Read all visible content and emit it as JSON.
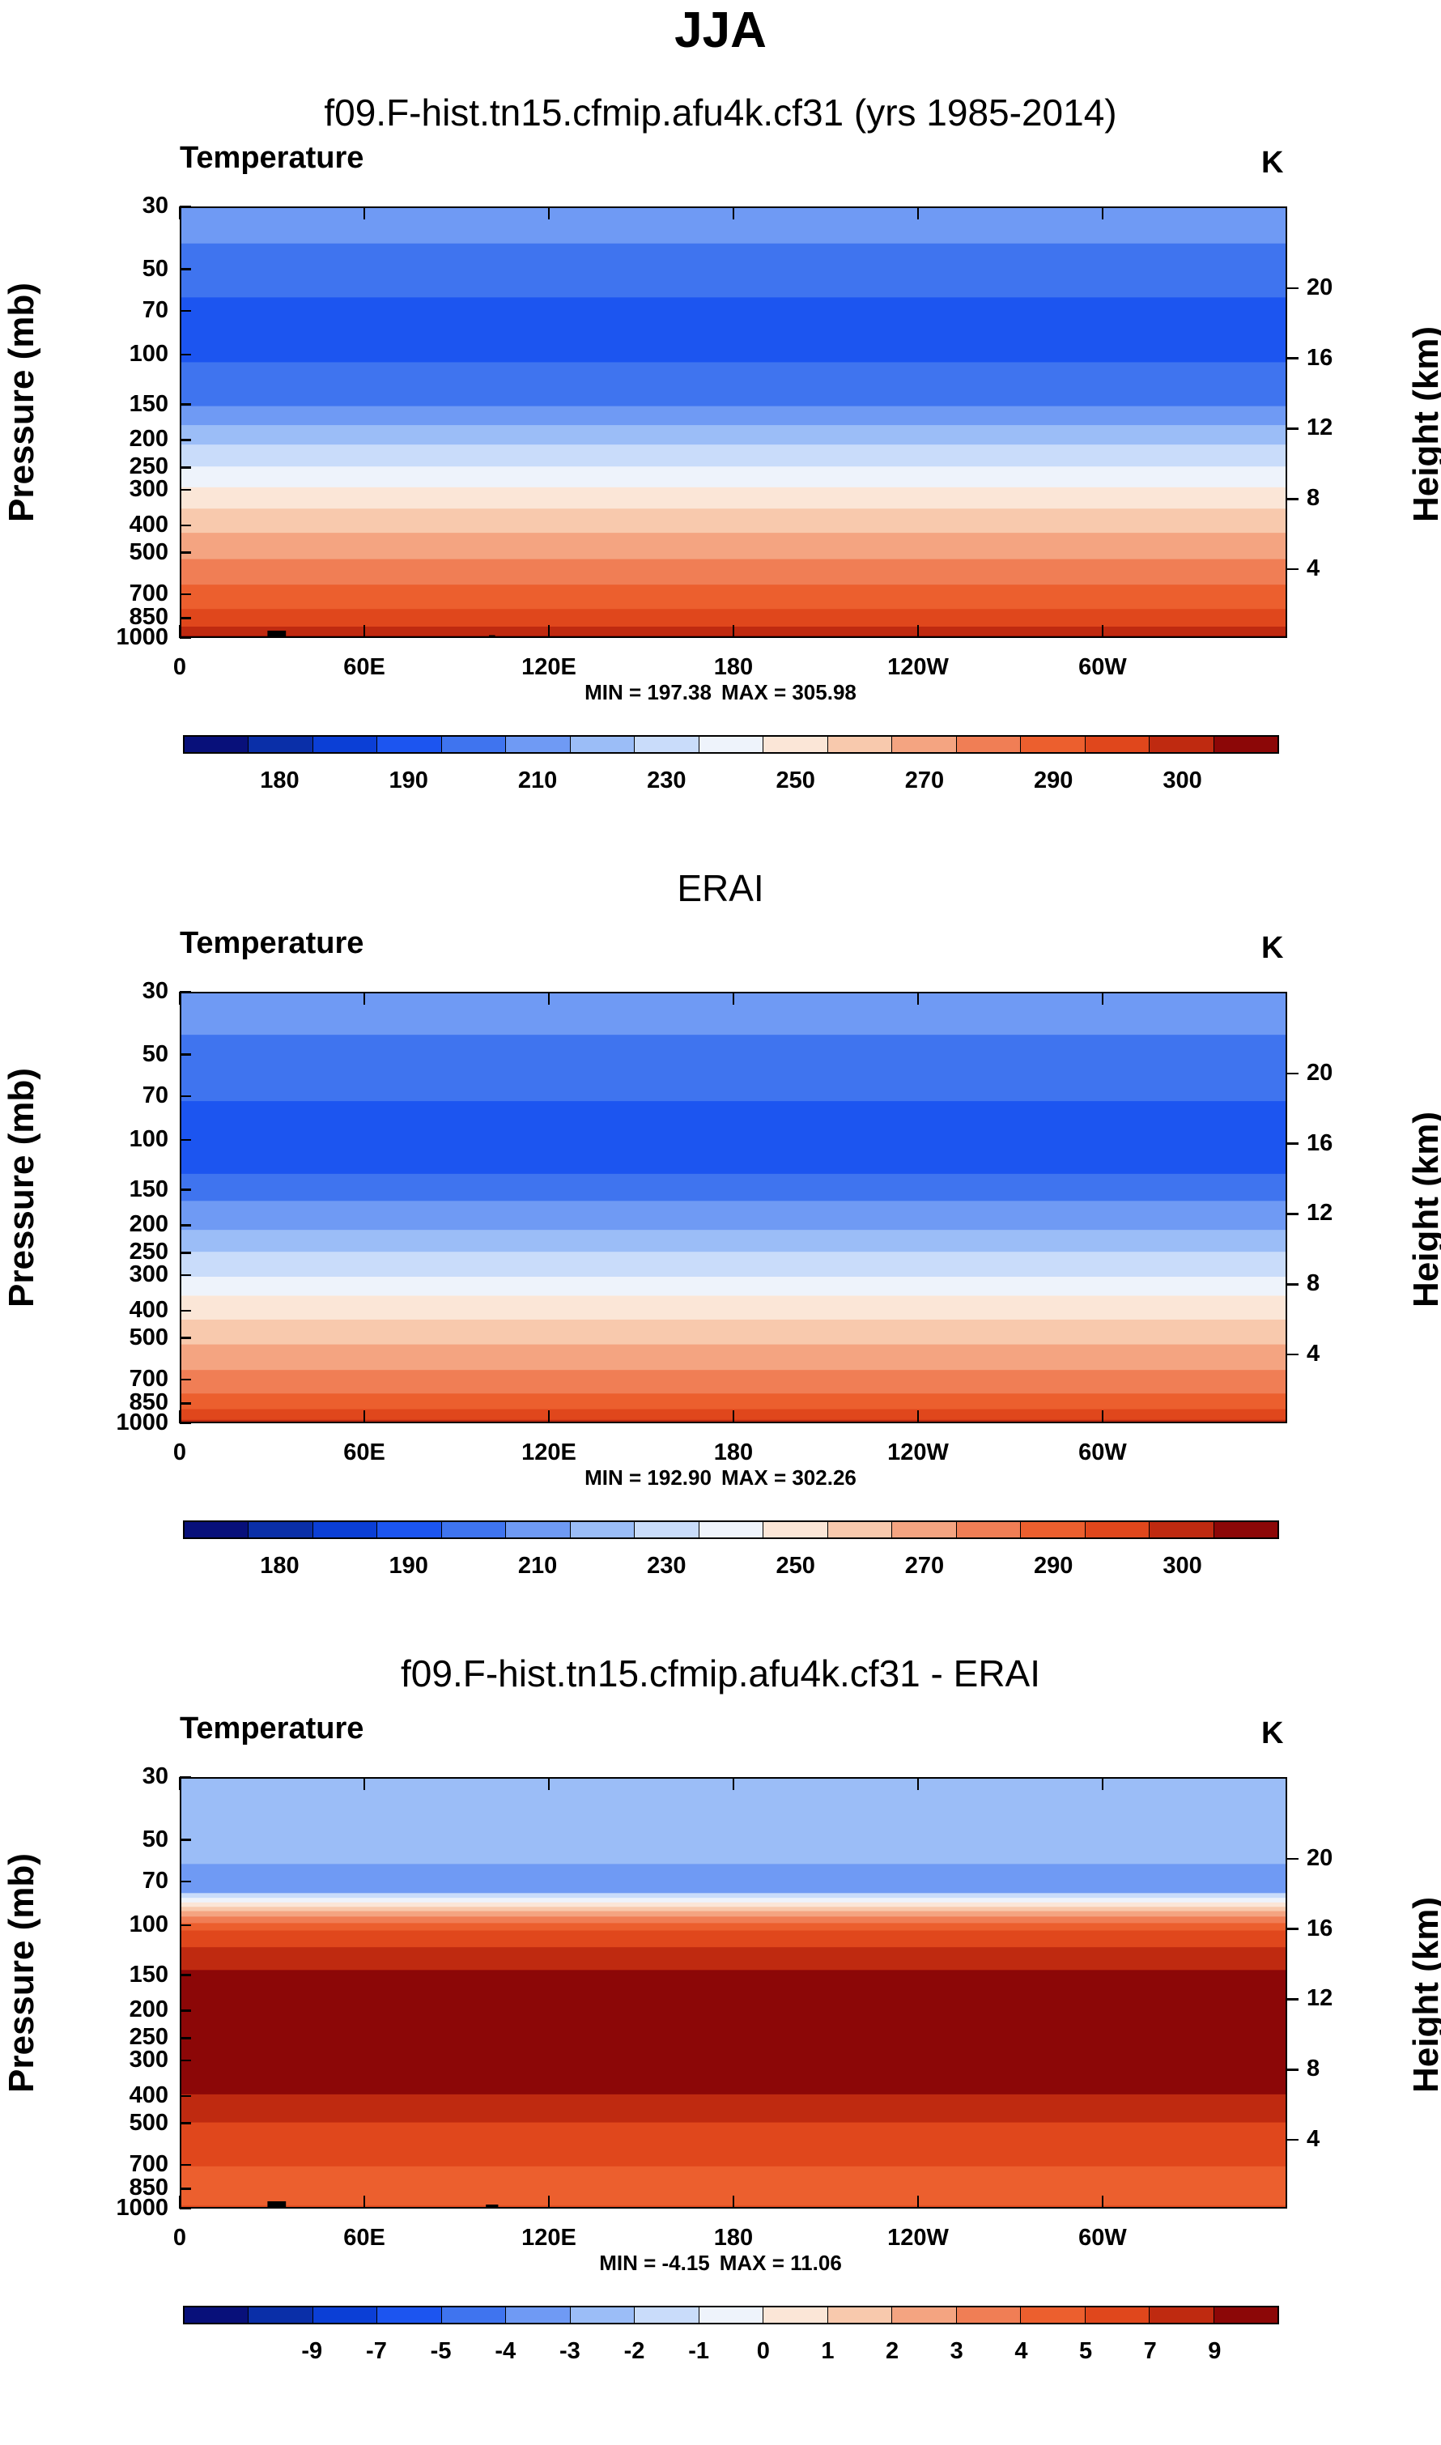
{
  "main_title": "JJA",
  "chart_data": [
    {
      "type": "heatmap",
      "title": "f09.F-hist.tn15.cfmip.afu4k.cf31 (yrs 1985-2014)",
      "variable": "Temperature",
      "units": "K",
      "ylabel": "Pressure (mb)",
      "ylabel_right": "Height (km)",
      "x_ticks": [
        "0",
        "60E",
        "120E",
        "180",
        "120W",
        "60W"
      ],
      "x_tick_values": [
        0,
        60,
        120,
        180,
        240,
        300
      ],
      "xlim": [
        0,
        360
      ],
      "y_ticks": [
        "30",
        "50",
        "70",
        "100",
        "150",
        "200",
        "250",
        "300",
        "400",
        "500",
        "700",
        "850",
        "1000"
      ],
      "y_tick_values": [
        30,
        50,
        70,
        100,
        150,
        200,
        250,
        300,
        400,
        500,
        700,
        850,
        1000
      ],
      "ylim": [
        30,
        1000
      ],
      "height_ticks": [
        "20",
        "16",
        "12",
        "8",
        "4"
      ],
      "height_tick_values": [
        20,
        16,
        12,
        8,
        4
      ],
      "min_label": "MIN = 197.38",
      "max_label": "MAX = 305.98",
      "colorbar_labels": [
        "180",
        "190",
        "210",
        "230",
        "250",
        "270",
        "290",
        "300"
      ],
      "levels": [
        175,
        180,
        185,
        190,
        200,
        210,
        220,
        230,
        240,
        250,
        260,
        270,
        280,
        290,
        295,
        300,
        305
      ],
      "bands": [
        {
          "p_top": 30,
          "p_bot": 40,
          "bin": 5
        },
        {
          "p_top": 40,
          "p_bot": 62,
          "bin": 4
        },
        {
          "p_top": 62,
          "p_bot": 105,
          "bin": 3
        },
        {
          "p_top": 105,
          "p_bot": 150,
          "bin": 4
        },
        {
          "p_top": 150,
          "p_bot": 175,
          "bin": 5
        },
        {
          "p_top": 175,
          "p_bot": 205,
          "bin": 6
        },
        {
          "p_top": 205,
          "p_bot": 245,
          "bin": 7
        },
        {
          "p_top": 245,
          "p_bot": 290,
          "bin": 8
        },
        {
          "p_top": 290,
          "p_bot": 345,
          "bin": 9
        },
        {
          "p_top": 345,
          "p_bot": 420,
          "bin": 10
        },
        {
          "p_top": 420,
          "p_bot": 520,
          "bin": 11
        },
        {
          "p_top": 520,
          "p_bot": 640,
          "bin": 12
        },
        {
          "p_top": 640,
          "p_bot": 780,
          "bin": 13
        },
        {
          "p_top": 780,
          "p_bot": 900,
          "bin": 14
        },
        {
          "p_top": 900,
          "p_bot": 970,
          "bin": 15
        },
        {
          "p_top": 970,
          "p_bot": 1000,
          "bin": 16
        }
      ],
      "topography": [
        {
          "lon_start": 8,
          "lon_end": 30,
          "p_top": 975
        },
        {
          "lon_start": 28,
          "lon_end": 34,
          "p_top": 930
        },
        {
          "lon_start": 34,
          "lon_end": 42,
          "p_top": 975
        },
        {
          "lon_start": 100,
          "lon_end": 102,
          "p_top": 965
        },
        {
          "lon_start": 283,
          "lon_end": 309,
          "p_top": 975
        }
      ]
    },
    {
      "type": "heatmap",
      "title": "ERAI",
      "variable": "Temperature",
      "units": "K",
      "ylabel": "Pressure (mb)",
      "ylabel_right": "Height (km)",
      "x_ticks": [
        "0",
        "60E",
        "120E",
        "180",
        "120W",
        "60W"
      ],
      "x_tick_values": [
        0,
        60,
        120,
        180,
        240,
        300
      ],
      "xlim": [
        0,
        360
      ],
      "y_ticks": [
        "30",
        "50",
        "70",
        "100",
        "150",
        "200",
        "250",
        "300",
        "400",
        "500",
        "700",
        "850",
        "1000"
      ],
      "y_tick_values": [
        30,
        50,
        70,
        100,
        150,
        200,
        250,
        300,
        400,
        500,
        700,
        850,
        1000
      ],
      "ylim": [
        30,
        1000
      ],
      "height_ticks": [
        "20",
        "16",
        "12",
        "8",
        "4"
      ],
      "height_tick_values": [
        20,
        16,
        12,
        8,
        4
      ],
      "min_label": "MIN = 192.90",
      "max_label": "MAX = 302.26",
      "colorbar_labels": [
        "180",
        "190",
        "210",
        "230",
        "250",
        "270",
        "290",
        "300"
      ],
      "levels": [
        175,
        180,
        185,
        190,
        200,
        210,
        220,
        230,
        240,
        250,
        260,
        270,
        280,
        290,
        295,
        300,
        305
      ],
      "bands": [
        {
          "p_top": 30,
          "p_bot": 42,
          "bin": 5
        },
        {
          "p_top": 42,
          "p_bot": 72,
          "bin": 4
        },
        {
          "p_top": 72,
          "p_bot": 130,
          "bin": 3
        },
        {
          "p_top": 130,
          "p_bot": 162,
          "bin": 4
        },
        {
          "p_top": 162,
          "p_bot": 205,
          "bin": 5
        },
        {
          "p_top": 205,
          "p_bot": 245,
          "bin": 6
        },
        {
          "p_top": 245,
          "p_bot": 300,
          "bin": 7
        },
        {
          "p_top": 300,
          "p_bot": 350,
          "bin": 8
        },
        {
          "p_top": 350,
          "p_bot": 425,
          "bin": 9
        },
        {
          "p_top": 425,
          "p_bot": 520,
          "bin": 10
        },
        {
          "p_top": 520,
          "p_bot": 640,
          "bin": 11
        },
        {
          "p_top": 640,
          "p_bot": 775,
          "bin": 12
        },
        {
          "p_top": 775,
          "p_bot": 880,
          "bin": 13
        },
        {
          "p_top": 880,
          "p_bot": 960,
          "bin": 14
        },
        {
          "p_top": 960,
          "p_bot": 1000,
          "bin": 15
        }
      ],
      "topography": []
    },
    {
      "type": "heatmap",
      "title": "f09.F-hist.tn15.cfmip.afu4k.cf31 - ERAI",
      "variable": "Temperature",
      "units": "K",
      "ylabel": "Pressure (mb)",
      "ylabel_right": "Height (km)",
      "x_ticks": [
        "0",
        "60E",
        "120E",
        "180",
        "120W",
        "60W"
      ],
      "x_tick_values": [
        0,
        60,
        120,
        180,
        240,
        300
      ],
      "xlim": [
        0,
        360
      ],
      "y_ticks": [
        "30",
        "50",
        "70",
        "100",
        "150",
        "200",
        "250",
        "300",
        "400",
        "500",
        "700",
        "850",
        "1000"
      ],
      "y_tick_values": [
        30,
        50,
        70,
        100,
        150,
        200,
        250,
        300,
        400,
        500,
        700,
        850,
        1000
      ],
      "ylim": [
        30,
        1000
      ],
      "height_ticks": [
        "20",
        "16",
        "12",
        "8",
        "4"
      ],
      "height_tick_values": [
        20,
        16,
        12,
        8,
        4
      ],
      "min_label": "MIN = -4.15",
      "max_label": "MAX = 11.06",
      "colorbar_labels": [
        "-9",
        "-7",
        "-5",
        "-4",
        "-3",
        "-2",
        "-1",
        "0",
        "1",
        "2",
        "3",
        "4",
        "5",
        "7",
        "9"
      ],
      "levels": [
        -11,
        -9,
        -8,
        -7,
        -6,
        -5,
        -4,
        -3,
        -2,
        -1,
        0,
        1,
        2,
        3,
        4,
        5,
        7,
        9,
        11
      ],
      "bands": [
        {
          "p_top": 30,
          "p_bot": 60,
          "bin": 6
        },
        {
          "p_top": 60,
          "p_bot": 76,
          "bin": 5
        },
        {
          "p_top": 76,
          "p_bot": 79,
          "bin": 7
        },
        {
          "p_top": 79,
          "p_bot": 82,
          "bin": 8
        },
        {
          "p_top": 82,
          "p_bot": 85,
          "bin": 9
        },
        {
          "p_top": 85,
          "p_bot": 88,
          "bin": 10
        },
        {
          "p_top": 88,
          "p_bot": 92,
          "bin": 11
        },
        {
          "p_top": 92,
          "p_bot": 97,
          "bin": 12
        },
        {
          "p_top": 97,
          "p_bot": 103,
          "bin": 13
        },
        {
          "p_top": 103,
          "p_bot": 118,
          "bin": 14
        },
        {
          "p_top": 118,
          "p_bot": 142,
          "bin": 15
        },
        {
          "p_top": 142,
          "p_bot": 390,
          "bin": 16
        },
        {
          "p_top": 390,
          "p_bot": 490,
          "bin": 15
        },
        {
          "p_top": 490,
          "p_bot": 1000,
          "bin": 14
        },
        {
          "p_top": 700,
          "p_bot": 960,
          "bin": 13
        }
      ],
      "topography": [
        {
          "lon_start": 8,
          "lon_end": 30,
          "p_top": 975
        },
        {
          "lon_start": 28,
          "lon_end": 34,
          "p_top": 930
        },
        {
          "lon_start": 34,
          "lon_end": 42,
          "p_top": 975
        },
        {
          "lon_start": 99,
          "lon_end": 103,
          "p_top": 955
        },
        {
          "lon_start": 283,
          "lon_end": 311,
          "p_top": 975
        }
      ]
    }
  ],
  "colors": {
    "temp_palette": [
      "#08107a",
      "#0a2fa8",
      "#0b3fd6",
      "#1c55f0",
      "#3f74ef",
      "#6f9af4",
      "#9bbdf7",
      "#c9dcfa",
      "#eef3fb",
      "#fbe6d7",
      "#f8c9ad",
      "#f4a481",
      "#f07e55",
      "#ec5f2e",
      "#e0471c",
      "#bf2a10",
      "#8c0707"
    ],
    "diff_palette": [
      "#08107a",
      "#0a2fa8",
      "#0b3fd6",
      "#1c55f0",
      "#3f74ef",
      "#6f9af4",
      "#9bbdf7",
      "#c9dcfa",
      "#eef3fb",
      "#fbe6d7",
      "#f8c9ad",
      "#f4a481",
      "#f07e55",
      "#ec5f2e",
      "#e0471c",
      "#bf2a10",
      "#8c0707"
    ]
  }
}
